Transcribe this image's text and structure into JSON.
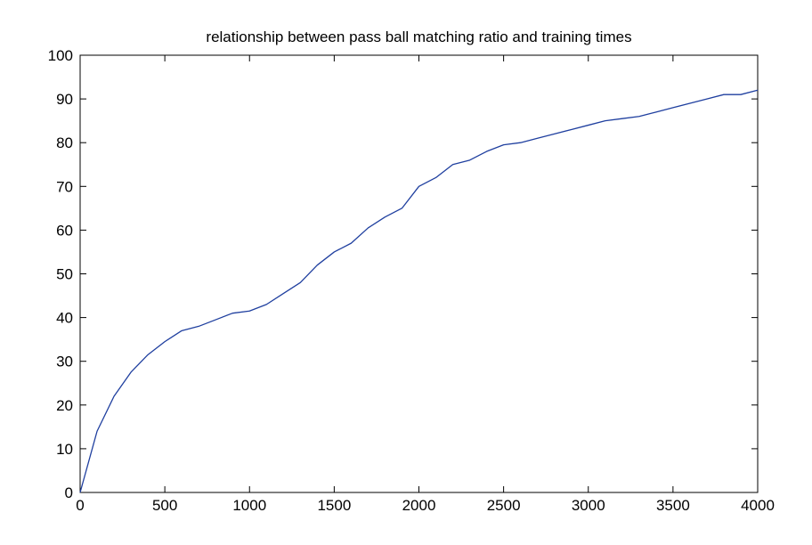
{
  "chart_data": {
    "type": "line",
    "title": "relationship between pass ball matching ratio and training times",
    "xlabel": "",
    "ylabel": "",
    "xlim": [
      0,
      4000
    ],
    "ylim": [
      0,
      100
    ],
    "x_ticks": [
      "0",
      "500",
      "1000",
      "1500",
      "2000",
      "2500",
      "3000",
      "3500",
      "4000"
    ],
    "y_ticks": [
      "0",
      "10",
      "20",
      "30",
      "40",
      "50",
      "60",
      "70",
      "80",
      "90",
      "100"
    ],
    "grid": false,
    "legend": "none",
    "line_color": "#1f3f9f",
    "series": [
      {
        "x": [
          0,
          100,
          200,
          300,
          400,
          500,
          600,
          700,
          800,
          900,
          1000,
          1100,
          1200,
          1300,
          1400,
          1500,
          1600,
          1700,
          1800,
          1900,
          2000,
          2100,
          2200,
          2300,
          2400,
          2500,
          2600,
          2700,
          2800,
          2900,
          3000,
          3100,
          3200,
          3300,
          3400,
          3500,
          3600,
          3700,
          3800,
          3900,
          4000
        ],
        "y": [
          0,
          14,
          22,
          27.5,
          31.5,
          34.5,
          37,
          38,
          39.5,
          41,
          41.5,
          43,
          45.5,
          48,
          52,
          55,
          57,
          60.5,
          63,
          65,
          70,
          72,
          75,
          76,
          78,
          79.5,
          80,
          81,
          82,
          83,
          84,
          85,
          85.5,
          86,
          87,
          88,
          89,
          90,
          91,
          91,
          92
        ]
      }
    ]
  }
}
